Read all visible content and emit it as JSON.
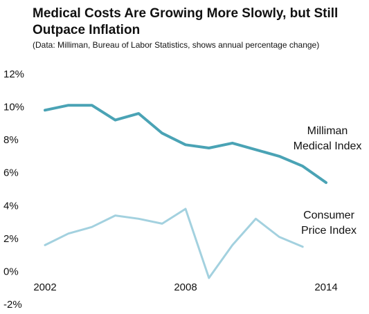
{
  "chart_data": {
    "type": "line",
    "title": "Medical Costs Are Growing More Slowly, but Still Outpace Inflation",
    "subtitle": "(Data: Milliman, Bureau of Labor Statistics, shows annual percentage change)",
    "xlabel": "",
    "ylabel": "",
    "x": [
      2002,
      2003,
      2004,
      2005,
      2006,
      2007,
      2008,
      2009,
      2010,
      2011,
      2012,
      2013,
      2014
    ],
    "xlim": [
      2002,
      2014
    ],
    "xticks": [
      2002,
      2008,
      2014
    ],
    "xtick_labels": [
      "2002",
      "2008",
      "2014"
    ],
    "ylim": [
      -2,
      12
    ],
    "yticks": [
      -2,
      0,
      2,
      4,
      6,
      8,
      10,
      12
    ],
    "ytick_labels": [
      "-2%",
      "0%",
      "2%",
      "4%",
      "6%",
      "8%",
      "10%",
      "12%"
    ],
    "grid": false,
    "legend": "none",
    "series": [
      {
        "name": "Milliman Medical Index",
        "label_lines": [
          "Milliman",
          "Medical Index"
        ],
        "color": "#4aa3b5",
        "values": [
          9.8,
          10.1,
          10.1,
          9.2,
          9.6,
          8.4,
          7.7,
          7.5,
          7.8,
          7.4,
          7.0,
          6.4,
          5.4
        ]
      },
      {
        "name": "Consumer Price Index",
        "label_lines": [
          "Consumer",
          "Price Index"
        ],
        "color": "#a3d1df",
        "values": [
          1.6,
          2.3,
          2.7,
          3.4,
          3.2,
          2.9,
          3.8,
          -0.4,
          1.6,
          3.2,
          2.1,
          1.5,
          null
        ]
      }
    ]
  }
}
